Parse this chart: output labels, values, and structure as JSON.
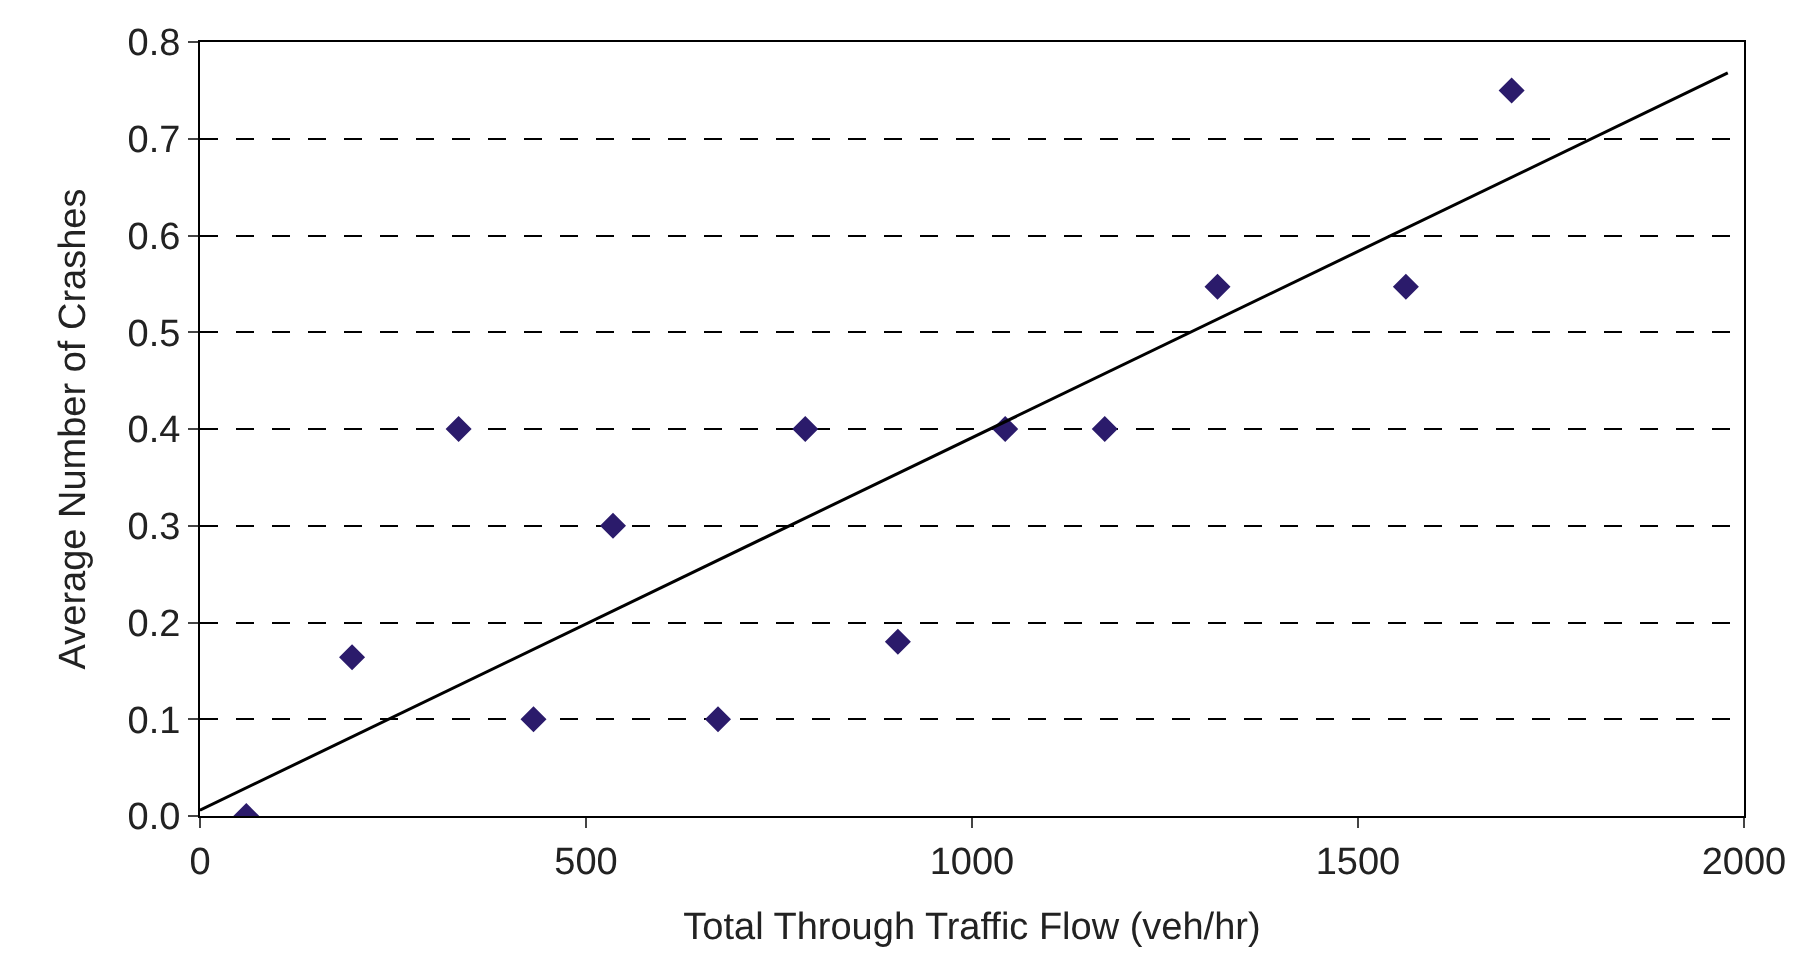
{
  "chart_data": {
    "type": "scatter",
    "xlabel": "Total Through Traffic Flow (veh/hr)",
    "ylabel": "Average Number of Crashes",
    "xlim": [
      0,
      2000
    ],
    "xticks": [
      0,
      500,
      1000,
      1500,
      2000
    ],
    "ylim": [
      0,
      0.8
    ],
    "yticks": [
      {
        "value": 0,
        "label": "0.0"
      },
      0.1,
      0.2,
      0.3,
      0.4,
      0.5,
      0.6,
      0.7,
      0.8
    ],
    "grid": "y",
    "marker": "diamond",
    "series": [
      {
        "color": "#2b1b6b",
        "x": [
          60,
          197,
          335,
          432,
          535,
          671,
          784,
          904,
          1043,
          1172,
          1318,
          1562,
          1699
        ],
        "values": [
          0,
          0.164,
          0.4,
          0.1,
          0.3,
          0.1,
          0.4,
          0.18,
          0.4,
          0.4,
          0.547,
          0.547,
          0.75
        ]
      },
      {
        "type": "line",
        "marker": "none",
        "color": "#000000",
        "x": [
          0,
          1979
        ],
        "values": [
          0.006,
          0.768
        ]
      }
    ]
  }
}
